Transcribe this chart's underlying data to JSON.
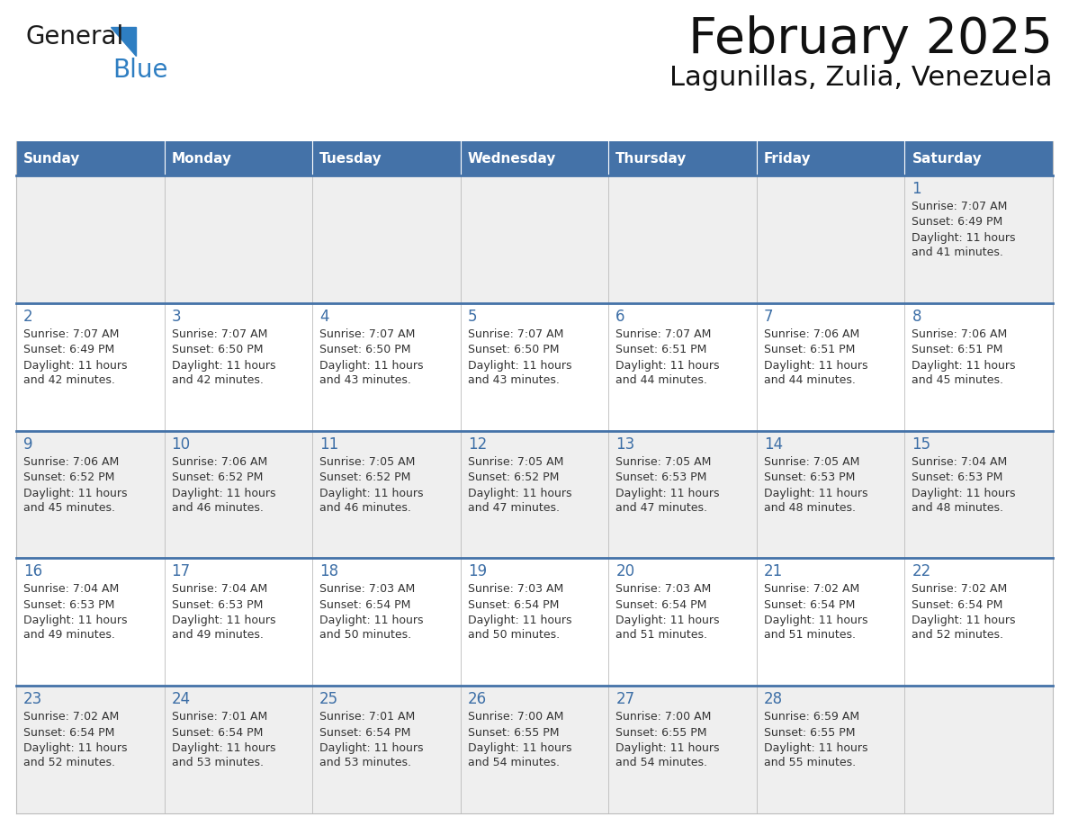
{
  "title": "February 2025",
  "subtitle": "Lagunillas, Zulia, Venezuela",
  "header_color": "#4472A8",
  "header_text_color": "#FFFFFF",
  "cell_bg_even": "#EFEFEF",
  "cell_bg_odd": "#FFFFFF",
  "separator_color": "#4472A8",
  "grid_color": "#BBBBBB",
  "day_number_color": "#3C6EA6",
  "text_color": "#333333",
  "logo_text_color": "#1a1a1a",
  "logo_blue_color": "#2E7EC2",
  "triangle_color": "#2E7EC2",
  "days_of_week": [
    "Sunday",
    "Monday",
    "Tuesday",
    "Wednesday",
    "Thursday",
    "Friday",
    "Saturday"
  ],
  "calendar_data": [
    [
      {
        "day": null,
        "sunrise": null,
        "sunset": null,
        "daylight": null
      },
      {
        "day": null,
        "sunrise": null,
        "sunset": null,
        "daylight": null
      },
      {
        "day": null,
        "sunrise": null,
        "sunset": null,
        "daylight": null
      },
      {
        "day": null,
        "sunrise": null,
        "sunset": null,
        "daylight": null
      },
      {
        "day": null,
        "sunrise": null,
        "sunset": null,
        "daylight": null
      },
      {
        "day": null,
        "sunrise": null,
        "sunset": null,
        "daylight": null
      },
      {
        "day": 1,
        "sunrise": "7:07 AM",
        "sunset": "6:49 PM",
        "daylight": "11 hours\nand 41 minutes."
      }
    ],
    [
      {
        "day": 2,
        "sunrise": "7:07 AM",
        "sunset": "6:49 PM",
        "daylight": "11 hours\nand 42 minutes."
      },
      {
        "day": 3,
        "sunrise": "7:07 AM",
        "sunset": "6:50 PM",
        "daylight": "11 hours\nand 42 minutes."
      },
      {
        "day": 4,
        "sunrise": "7:07 AM",
        "sunset": "6:50 PM",
        "daylight": "11 hours\nand 43 minutes."
      },
      {
        "day": 5,
        "sunrise": "7:07 AM",
        "sunset": "6:50 PM",
        "daylight": "11 hours\nand 43 minutes."
      },
      {
        "day": 6,
        "sunrise": "7:07 AM",
        "sunset": "6:51 PM",
        "daylight": "11 hours\nand 44 minutes."
      },
      {
        "day": 7,
        "sunrise": "7:06 AM",
        "sunset": "6:51 PM",
        "daylight": "11 hours\nand 44 minutes."
      },
      {
        "day": 8,
        "sunrise": "7:06 AM",
        "sunset": "6:51 PM",
        "daylight": "11 hours\nand 45 minutes."
      }
    ],
    [
      {
        "day": 9,
        "sunrise": "7:06 AM",
        "sunset": "6:52 PM",
        "daylight": "11 hours\nand 45 minutes."
      },
      {
        "day": 10,
        "sunrise": "7:06 AM",
        "sunset": "6:52 PM",
        "daylight": "11 hours\nand 46 minutes."
      },
      {
        "day": 11,
        "sunrise": "7:05 AM",
        "sunset": "6:52 PM",
        "daylight": "11 hours\nand 46 minutes."
      },
      {
        "day": 12,
        "sunrise": "7:05 AM",
        "sunset": "6:52 PM",
        "daylight": "11 hours\nand 47 minutes."
      },
      {
        "day": 13,
        "sunrise": "7:05 AM",
        "sunset": "6:53 PM",
        "daylight": "11 hours\nand 47 minutes."
      },
      {
        "day": 14,
        "sunrise": "7:05 AM",
        "sunset": "6:53 PM",
        "daylight": "11 hours\nand 48 minutes."
      },
      {
        "day": 15,
        "sunrise": "7:04 AM",
        "sunset": "6:53 PM",
        "daylight": "11 hours\nand 48 minutes."
      }
    ],
    [
      {
        "day": 16,
        "sunrise": "7:04 AM",
        "sunset": "6:53 PM",
        "daylight": "11 hours\nand 49 minutes."
      },
      {
        "day": 17,
        "sunrise": "7:04 AM",
        "sunset": "6:53 PM",
        "daylight": "11 hours\nand 49 minutes."
      },
      {
        "day": 18,
        "sunrise": "7:03 AM",
        "sunset": "6:54 PM",
        "daylight": "11 hours\nand 50 minutes."
      },
      {
        "day": 19,
        "sunrise": "7:03 AM",
        "sunset": "6:54 PM",
        "daylight": "11 hours\nand 50 minutes."
      },
      {
        "day": 20,
        "sunrise": "7:03 AM",
        "sunset": "6:54 PM",
        "daylight": "11 hours\nand 51 minutes."
      },
      {
        "day": 21,
        "sunrise": "7:02 AM",
        "sunset": "6:54 PM",
        "daylight": "11 hours\nand 51 minutes."
      },
      {
        "day": 22,
        "sunrise": "7:02 AM",
        "sunset": "6:54 PM",
        "daylight": "11 hours\nand 52 minutes."
      }
    ],
    [
      {
        "day": 23,
        "sunrise": "7:02 AM",
        "sunset": "6:54 PM",
        "daylight": "11 hours\nand 52 minutes."
      },
      {
        "day": 24,
        "sunrise": "7:01 AM",
        "sunset": "6:54 PM",
        "daylight": "11 hours\nand 53 minutes."
      },
      {
        "day": 25,
        "sunrise": "7:01 AM",
        "sunset": "6:54 PM",
        "daylight": "11 hours\nand 53 minutes."
      },
      {
        "day": 26,
        "sunrise": "7:00 AM",
        "sunset": "6:55 PM",
        "daylight": "11 hours\nand 54 minutes."
      },
      {
        "day": 27,
        "sunrise": "7:00 AM",
        "sunset": "6:55 PM",
        "daylight": "11 hours\nand 54 minutes."
      },
      {
        "day": 28,
        "sunrise": "6:59 AM",
        "sunset": "6:55 PM",
        "daylight": "11 hours\nand 55 minutes."
      },
      {
        "day": null,
        "sunrise": null,
        "sunset": null,
        "daylight": null
      }
    ]
  ]
}
